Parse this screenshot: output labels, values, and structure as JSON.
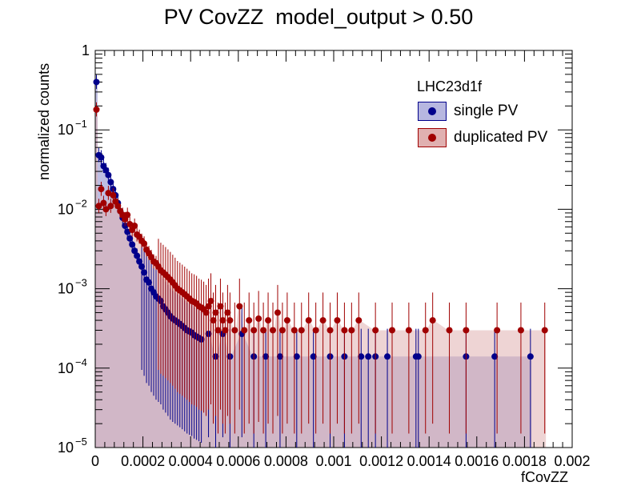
{
  "chart_data": {
    "type": "scatter",
    "title": "PV CovZZ  model_output > 0.50",
    "xlabel": "fCovZZ",
    "ylabel": "normalized counts",
    "xlim": [
      0,
      0.002
    ],
    "ylim": [
      1e-05,
      1
    ],
    "yscale": "log",
    "grid": false,
    "legend_position": "top-right",
    "legend_header": "LHC23d1f",
    "x_tick_labels": [
      "0",
      "0.0002",
      "0.0004",
      "0.0006",
      "0.0008",
      "0.001",
      "0.0012",
      "0.0014",
      "0.0016",
      "0.0018",
      "0.002"
    ],
    "y_tick_labels": [
      {
        "base": "1",
        "exp": ""
      },
      {
        "base": "10",
        "exp": "−1"
      },
      {
        "base": "10",
        "exp": "−2"
      },
      {
        "base": "10",
        "exp": "−3"
      },
      {
        "base": "10",
        "exp": "−4"
      },
      {
        "base": "10",
        "exp": "−5"
      }
    ],
    "series": [
      {
        "name": "single PV",
        "color": "#00008b",
        "fill": "#b7b7e0",
        "x": [
          5e-06,
          1.5e-05,
          2.5e-05,
          3.5e-05,
          4.5e-05,
          5.5e-05,
          6.5e-05,
          7.5e-05,
          8.5e-05,
          9.5e-05,
          0.000105,
          0.000115,
          0.000125,
          0.000135,
          0.000145,
          0.000155,
          0.000165,
          0.000175,
          0.000185,
          0.000195,
          0.000205,
          0.000215,
          0.000225,
          0.000235,
          0.000245,
          0.000255,
          0.000265,
          0.000275,
          0.000285,
          0.000295,
          0.000305,
          0.000315,
          0.000325,
          0.000335,
          0.000345,
          0.000355,
          0.000365,
          0.000375,
          0.000385,
          0.000395,
          0.000405,
          0.000415,
          0.000425,
          0.000435,
          0.000445,
          0.000475,
          0.000505,
          0.000535,
          0.000565,
          0.000615,
          0.000665,
          0.000715,
          0.000775,
          0.000845,
          0.000915,
          0.000985,
          0.001045,
          0.001115,
          0.001145,
          0.001175,
          0.001225,
          0.001345,
          0.001355,
          0.001555,
          0.001675,
          0.001825
        ],
        "y": [
          0.4,
          0.048,
          0.045,
          0.035,
          0.031,
          0.027,
          0.022,
          0.018,
          0.015,
          0.012,
          0.0095,
          0.0078,
          0.0062,
          0.0052,
          0.0043,
          0.0036,
          0.003,
          0.0026,
          0.0022,
          0.0019,
          0.0016,
          0.0013,
          0.0012,
          0.001,
          0.0009,
          0.0008,
          0.00075,
          0.0007,
          0.0006,
          0.00055,
          0.0005,
          0.00045,
          0.00042,
          0.0004,
          0.00038,
          0.00036,
          0.00034,
          0.00032,
          0.0003,
          0.00029,
          0.00028,
          0.00026,
          0.00025,
          0.00024,
          0.00023,
          0.00027,
          0.00014,
          0.00027,
          0.00014,
          0.00027,
          0.00014,
          0.00014,
          0.00014,
          0.00014,
          0.00014,
          0.00014,
          0.00014,
          0.00014,
          0.00014,
          0.00014,
          0.00014,
          0.00014,
          0.00014,
          0.00014,
          0.00014,
          0.00014
        ]
      },
      {
        "name": "duplicated PV",
        "color": "#a00000",
        "fill": "#e0b0b0",
        "x": [
          5e-06,
          1.5e-05,
          2.5e-05,
          3.5e-05,
          4.5e-05,
          5.5e-05,
          6.5e-05,
          7.5e-05,
          8.5e-05,
          9.5e-05,
          0.000105,
          0.000115,
          0.000125,
          0.000135,
          0.000145,
          0.000155,
          0.000165,
          0.000175,
          0.000185,
          0.000195,
          0.000205,
          0.000215,
          0.000225,
          0.000235,
          0.000245,
          0.000255,
          0.000265,
          0.000275,
          0.000285,
          0.000295,
          0.000305,
          0.000315,
          0.000325,
          0.000335,
          0.000345,
          0.000355,
          0.000365,
          0.000375,
          0.000385,
          0.000395,
          0.000405,
          0.000415,
          0.000425,
          0.000435,
          0.000445,
          0.000455,
          0.000465,
          0.000475,
          0.000485,
          0.000495,
          0.000505,
          0.000515,
          0.000525,
          0.000535,
          0.000545,
          0.000555,
          0.000565,
          0.000585,
          0.000605,
          0.000625,
          0.000645,
          0.000665,
          0.000685,
          0.000705,
          0.000725,
          0.000745,
          0.000765,
          0.000785,
          0.000805,
          0.000835,
          0.000865,
          0.000895,
          0.000925,
          0.000955,
          0.000985,
          0.001015,
          0.001045,
          0.001075,
          0.001105,
          0.001175,
          0.001245,
          0.001315,
          0.001385,
          0.001415,
          0.001485,
          0.001555,
          0.001685,
          0.001785,
          0.001885
        ],
        "y": [
          0.18,
          0.011,
          0.018,
          0.012,
          0.01,
          0.016,
          0.011,
          0.015,
          0.0125,
          0.011,
          0.0095,
          0.0085,
          0.0075,
          0.0085,
          0.0065,
          0.0055,
          0.0062,
          0.0048,
          0.0045,
          0.004,
          0.0037,
          0.0031,
          0.0028,
          0.0025,
          0.0022,
          0.0021,
          0.0019,
          0.0017,
          0.0016,
          0.0015,
          0.0014,
          0.0013,
          0.0012,
          0.0011,
          0.001,
          0.00095,
          0.0009,
          0.00085,
          0.0008,
          0.00075,
          0.0007,
          0.00068,
          0.00065,
          0.0006,
          0.00058,
          0.00055,
          0.0005,
          0.0006,
          0.0007,
          0.0004,
          0.0005,
          0.0003,
          0.0006,
          0.0004,
          0.0003,
          0.0005,
          0.0004,
          0.0003,
          0.0006,
          0.0003,
          0.0004,
          0.0003,
          0.00042,
          0.0003,
          0.0004,
          0.0003,
          0.0005,
          0.0003,
          0.0004,
          0.0003,
          0.0003,
          0.0004,
          0.0003,
          0.0004,
          0.0003,
          0.0004,
          0.0003,
          0.0003,
          0.0004,
          0.0003,
          0.0003,
          0.0003,
          0.0003,
          0.0004,
          0.0003,
          0.0003,
          0.0003,
          0.0003,
          0.0003
        ]
      }
    ]
  }
}
